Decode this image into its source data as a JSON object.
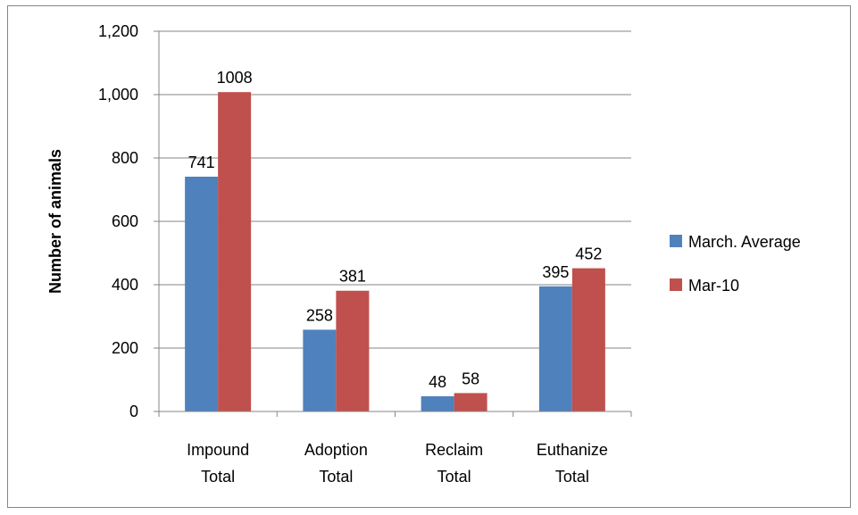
{
  "chart_data": {
    "type": "bar",
    "title": "",
    "xlabel": "",
    "ylabel": "Number of animals",
    "ylim": [
      0,
      1200
    ],
    "yticks": [
      "0",
      "200",
      "400",
      "600",
      "800",
      "1,000",
      "1,200"
    ],
    "ytick_values": [
      0,
      200,
      400,
      600,
      800,
      1000,
      1200
    ],
    "grid": true,
    "legend_position": "right",
    "categories": [
      [
        "Impound",
        "Total"
      ],
      [
        "Adoption",
        "Total"
      ],
      [
        "Reclaim",
        "Total"
      ],
      [
        "Euthanize",
        "Total"
      ]
    ],
    "series": [
      {
        "name": "March. Average",
        "color": "#4F81BD",
        "values": [
          741,
          258,
          48,
          395
        ],
        "labels": [
          "741",
          "258",
          "48",
          "395"
        ]
      },
      {
        "name": "Mar-10",
        "color": "#C0504D",
        "values": [
          1008,
          381,
          58,
          452
        ],
        "labels": [
          "1008",
          "381",
          "58",
          "452"
        ]
      }
    ]
  }
}
